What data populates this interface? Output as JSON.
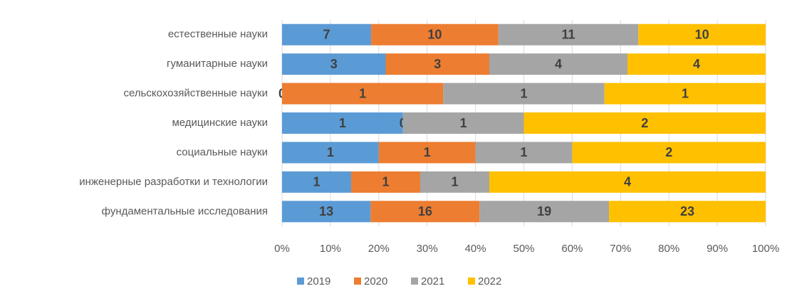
{
  "chart_data": {
    "type": "bar",
    "orientation": "horizontal",
    "stacked": "percent",
    "categories": [
      "естественные науки",
      "гуманитарные науки",
      "сельскохозяйственные науки",
      "медицинские науки",
      "социальные науки",
      "инженерные разработки и технологии",
      "фундаментальные исследования"
    ],
    "series": [
      {
        "name": "2019",
        "color": "#5b9bd5",
        "values": [
          7,
          3,
          0,
          1,
          1,
          1,
          13
        ]
      },
      {
        "name": "2020",
        "color": "#ed7d31",
        "values": [
          10,
          3,
          1,
          0,
          1,
          1,
          16
        ]
      },
      {
        "name": "2021",
        "color": "#a5a5a5",
        "values": [
          11,
          4,
          1,
          1,
          1,
          1,
          19
        ]
      },
      {
        "name": "2022",
        "color": "#ffc000",
        "values": [
          10,
          4,
          1,
          2,
          2,
          4,
          23
        ]
      }
    ],
    "xlim": [
      0,
      100
    ],
    "xticks": [
      {
        "value": 0,
        "label": "0%"
      },
      {
        "value": 10,
        "label": "10%"
      },
      {
        "value": 20,
        "label": "20%"
      },
      {
        "value": 30,
        "label": "30%"
      },
      {
        "value": 40,
        "label": "40%"
      },
      {
        "value": 50,
        "label": "50%"
      },
      {
        "value": 60,
        "label": "60%"
      },
      {
        "value": 70,
        "label": "70%"
      },
      {
        "value": 80,
        "label": "80%"
      },
      {
        "value": 90,
        "label": "90%"
      },
      {
        "value": 100,
        "label": "100%"
      }
    ],
    "grid": true,
    "legend": "bottom"
  }
}
